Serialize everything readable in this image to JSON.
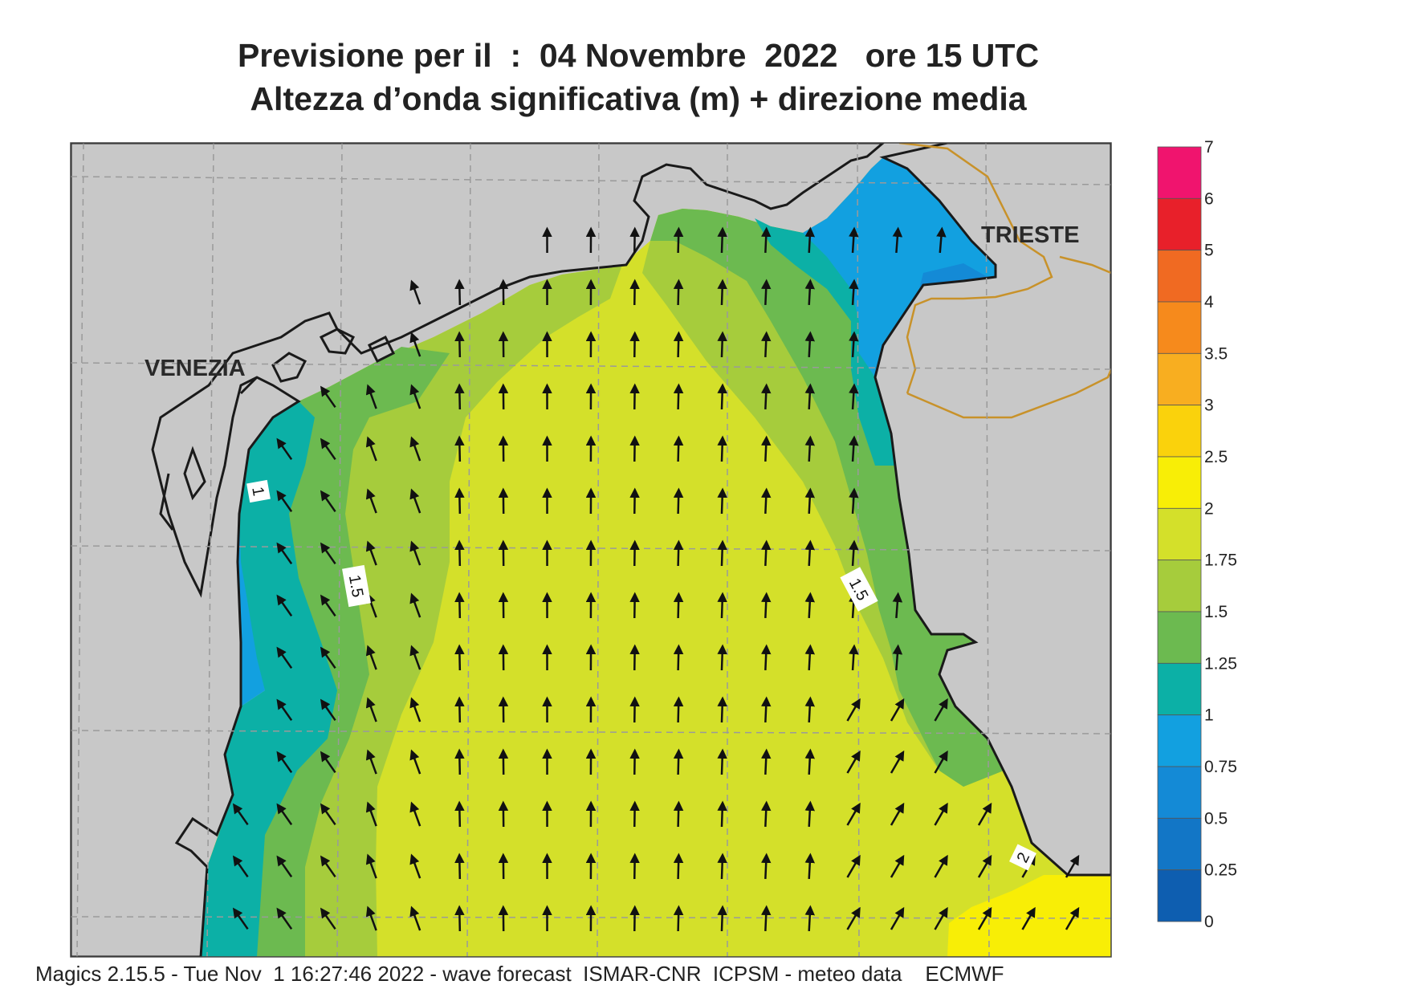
{
  "title": {
    "line1": "Previsione per il  :  04 Novembre  2022   ore 15 UTC",
    "line2": "Altezza d’onda significativa (m) + direzione media"
  },
  "map": {
    "cities": [
      "VENEZIA",
      "TRIESTE"
    ],
    "contour_labels": [
      "1",
      "1.5",
      "1.5",
      "2"
    ],
    "land_color": "#c8c8c8",
    "coast_color": "#1a1a1a",
    "border_color": "#c8922a"
  },
  "legend": {
    "levels": [
      {
        "label": "7",
        "color": ""
      },
      {
        "label": "6",
        "color": "#f0146e"
      },
      {
        "label": "5",
        "color": "#e8202a"
      },
      {
        "label": "4",
        "color": "#f06a22"
      },
      {
        "label": "3.5",
        "color": "#f68a1c"
      },
      {
        "label": "3",
        "color": "#f8ae20"
      },
      {
        "label": "2.5",
        "color": "#fad20c"
      },
      {
        "label": "2",
        "color": "#f8ee06"
      },
      {
        "label": "1.75",
        "color": "#d4e02a"
      },
      {
        "label": "1.5",
        "color": "#a6cc3c"
      },
      {
        "label": "1.25",
        "color": "#6cba50"
      },
      {
        "label": "1",
        "color": "#0cb0a6"
      },
      {
        "label": "0.75",
        "color": "#12a0e0"
      },
      {
        "label": "0.5",
        "color": "#148ad6"
      },
      {
        "label": "0.25",
        "color": "#1276c6"
      },
      {
        "label": "0",
        "color": "#0e5eb0"
      }
    ]
  },
  "footer": "Magics 2.15.5 - Tue Nov  1 16:27:46 2022 - wave forecast  ISMAR-CNR  ICPSM - meteo data    ECMWF"
}
